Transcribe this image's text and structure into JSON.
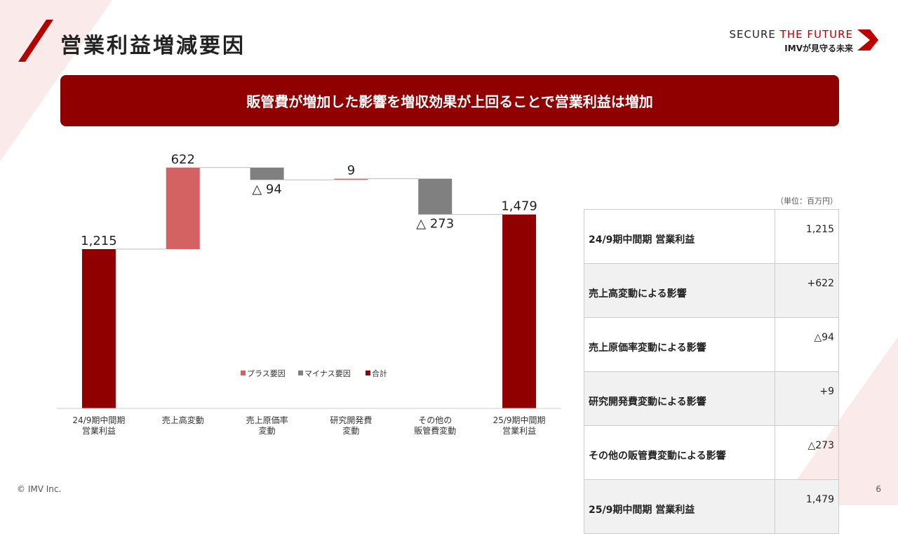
{
  "header": {
    "title": "営業利益増減要因",
    "logo_main": "SECURE",
    "logo_accent": "THE FUTURE",
    "tagline": "IMVが見守る未来"
  },
  "banner": "販管費が増加した影響を増収効果が上回ることで営業利益は増加",
  "chart_data": {
    "type": "waterfall",
    "categories": [
      "24/9期中間期\n営業利益",
      "売上高変動",
      "売上原価率\n変動",
      "研究開発費\n変動",
      "その他の\n販管費変動",
      "25/9期中間期\n営業利益"
    ],
    "values": [
      1215,
      622,
      -94,
      9,
      -273,
      1479
    ],
    "value_labels": [
      "1,215",
      "622",
      "△ 94",
      "9",
      "△ 273",
      "1,479"
    ],
    "measure": [
      "absolute",
      "relative",
      "relative",
      "relative",
      "relative",
      "absolute"
    ],
    "colors": [
      "#900000",
      "#d46262",
      "#808080",
      "#d46262",
      "#808080",
      "#900000"
    ],
    "legend": [
      {
        "name": "プラス要因",
        "color": "#d46262"
      },
      {
        "name": "マイナス要因",
        "color": "#808080"
      },
      {
        "name": "合計",
        "color": "#900000"
      }
    ],
    "ylim": [
      0,
      1900
    ]
  },
  "table": {
    "unit_note": "（単位：百万円）",
    "rows": [
      [
        "24/9期中間期 営業利益",
        "1,215"
      ],
      [
        "売上高変動による影響",
        "+622"
      ],
      [
        "売上原価率変動による影響",
        "△94"
      ],
      [
        "研究開発費変動による影響",
        "+9"
      ],
      [
        "その他の販管費変動による影響",
        "△273"
      ],
      [
        "25/9期中間期 営業利益",
        "1,479"
      ]
    ]
  },
  "footer": {
    "copyright": "© IMV Inc.",
    "page": "6"
  }
}
